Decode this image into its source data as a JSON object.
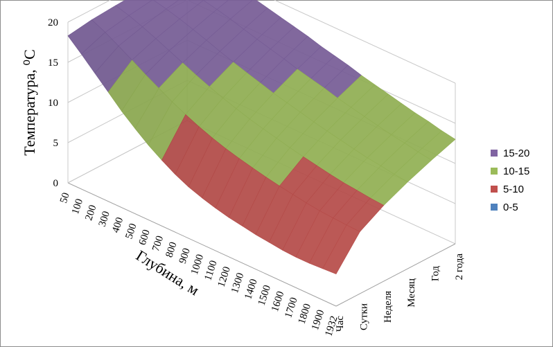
{
  "chart_data": {
    "type": "surface",
    "zlabel": "Температура, ⁰C",
    "xlabel": "Глубина, м",
    "x_categories": [
      "50",
      "100",
      "200",
      "300",
      "400",
      "500",
      "600",
      "700",
      "800",
      "900",
      "1000",
      "1100",
      "1200",
      "1300",
      "1400",
      "1500",
      "1600",
      "1700",
      "1800",
      "1900",
      "1932"
    ],
    "y_categories": [
      "Час",
      "Сутки",
      "Неделя",
      "Месяц",
      "Год",
      "2 года"
    ],
    "zlim": [
      0,
      20
    ],
    "z_ticks": [
      "0",
      "5",
      "10",
      "15",
      "20"
    ],
    "surface_front": [
      18.3,
      16.8,
      15.2,
      13.6,
      12.0,
      10.6,
      9.3,
      8.2,
      7.2,
      6.4,
      5.8,
      5.3,
      4.9,
      4.6,
      4.3,
      4.1,
      3.9,
      3.8,
      3.8,
      3.9,
      4.0
    ],
    "surface_back": [
      19.4,
      19.6,
      19.6,
      19.5,
      19.3,
      19.0,
      18.6,
      18.2,
      17.8,
      17.4,
      16.9,
      16.5,
      16.1,
      15.6,
      15.2,
      14.8,
      14.4,
      14.0,
      13.7,
      13.3,
      13.0
    ],
    "legend": [
      {
        "label": "15-20",
        "color": "#8064a2"
      },
      {
        "label": "10-15",
        "color": "#9bbb59"
      },
      {
        "label": "5-10",
        "color": "#c0504d"
      },
      {
        "label": "0-5",
        "color": "#4f81bd"
      }
    ]
  }
}
